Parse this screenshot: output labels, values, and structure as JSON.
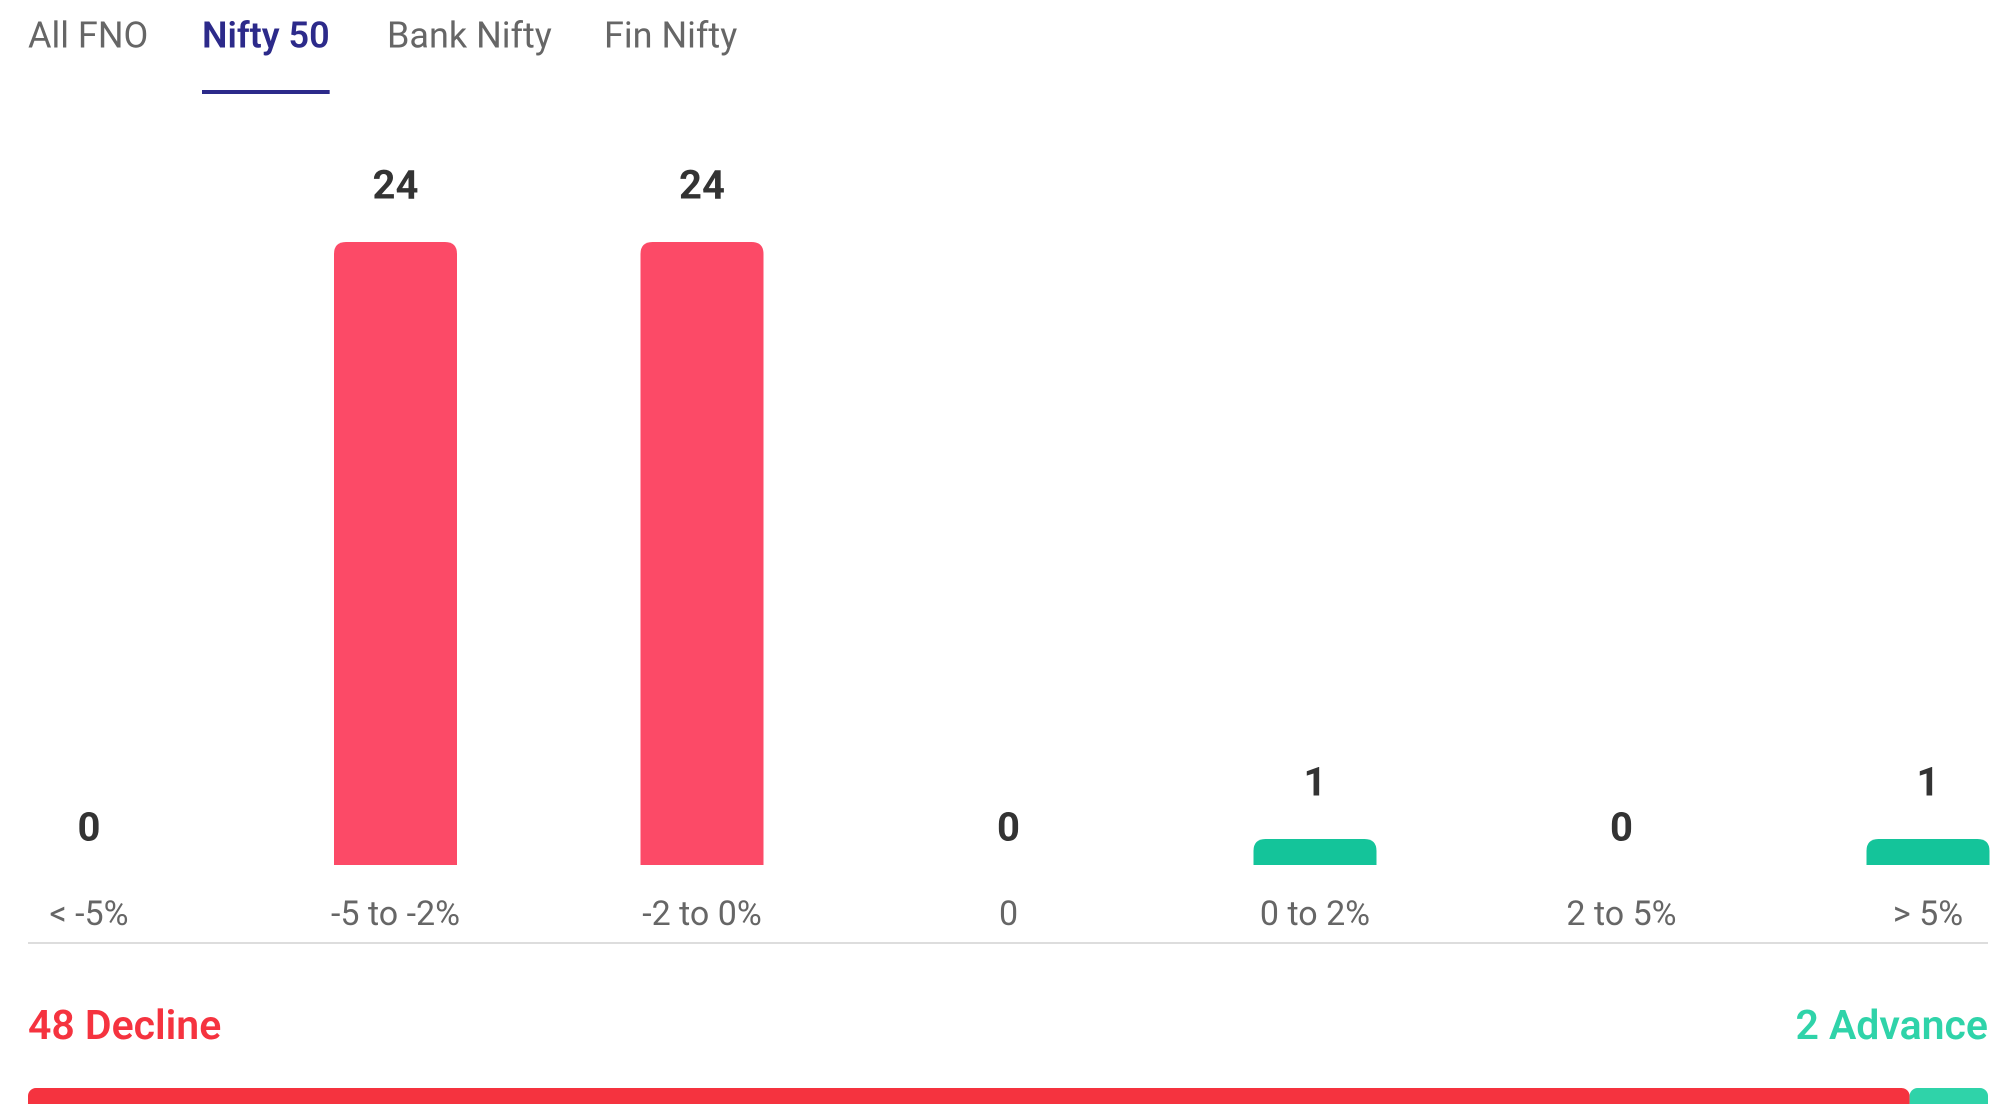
{
  "tabs": {
    "items": [
      "All FNO",
      "Nifty 50",
      "Bank Nifty",
      "Fin Nifty"
    ],
    "active": 1
  },
  "chart_data": {
    "type": "bar",
    "categories": [
      "< -5%",
      "-5 to -2%",
      "-2 to 0%",
      "0",
      "0 to 2%",
      "2 to 5%",
      "> 5%"
    ],
    "values": [
      0,
      24,
      24,
      0,
      1,
      0,
      1
    ],
    "colors": [
      "#fc4a67",
      "#fc4a67",
      "#fc4a67",
      "#9e9e9e",
      "#14c49a",
      "#14c49a",
      "#14c49a"
    ],
    "ylim": [
      0,
      24
    ]
  },
  "summary": {
    "decline": 48,
    "decline_label": "Decline",
    "advance": 2,
    "advance_label": "Advance",
    "decline_color": "#f5333f",
    "advance_color": "#2fd3a9"
  }
}
